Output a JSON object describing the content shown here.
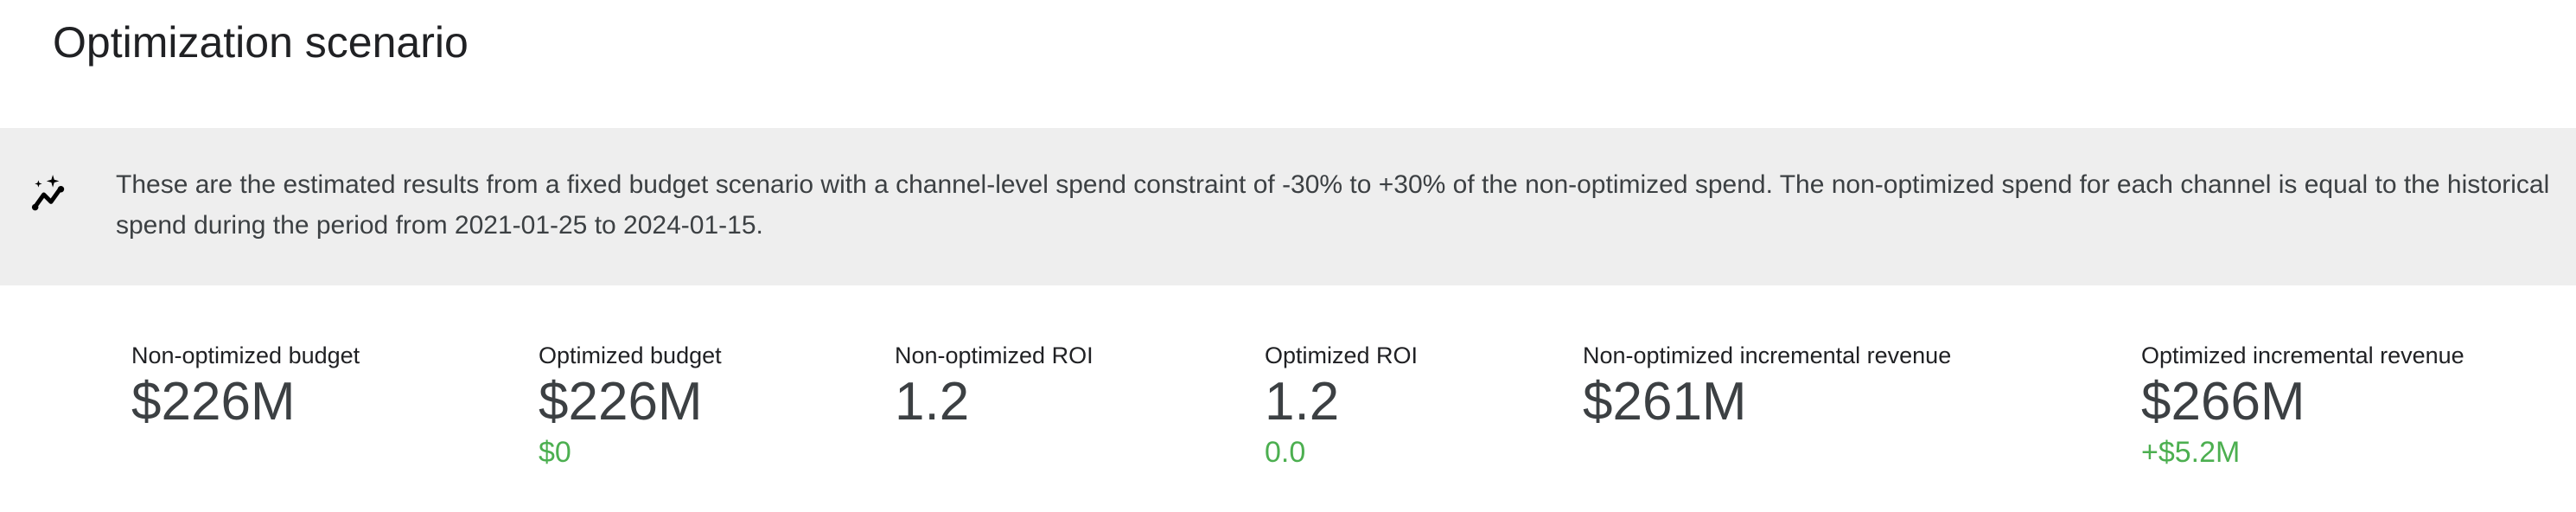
{
  "page_title": "Optimization scenario",
  "banner": {
    "icon": "insights-sparkle-icon",
    "text": "These are the estimated results from a fixed budget scenario with a channel-level spend constraint of -30% to +30% of the non-optimized spend. The non-optimized spend for each channel is equal to the historical spend during the period from 2021-01-25 to 2024-01-15."
  },
  "colors": {
    "positive_delta": "#4caf50",
    "banner_bg": "#eeeeee"
  },
  "metrics": [
    {
      "label": "Non-optimized budget",
      "value": "$226M",
      "delta": ""
    },
    {
      "label": "Optimized budget",
      "value": "$226M",
      "delta": "$0"
    },
    {
      "label": "Non-optimized ROI",
      "value": "1.2",
      "delta": ""
    },
    {
      "label": "Optimized ROI",
      "value": "1.2",
      "delta": "0.0"
    },
    {
      "label": "Non-optimized incremental revenue",
      "value": "$261M",
      "delta": ""
    },
    {
      "label": "Optimized incremental revenue",
      "value": "$266M",
      "delta": "+$5.2M"
    }
  ]
}
